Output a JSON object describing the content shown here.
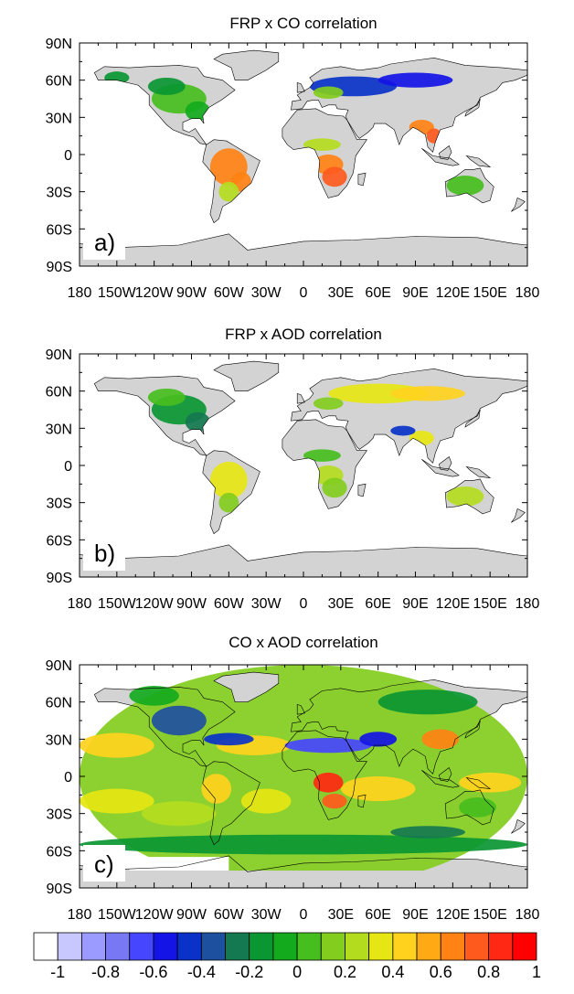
{
  "panels": [
    {
      "title": "FRP x CO correlation",
      "label": "a)"
    },
    {
      "title": "FRP x AOD correlation",
      "label": "b)"
    },
    {
      "title": "CO x AOD correlation",
      "label": "c)"
    }
  ],
  "lat_ticks": [
    "90N",
    "60N",
    "30N",
    "0",
    "30S",
    "60S",
    "90S"
  ],
  "lon_ticks": [
    "180",
    "150W",
    "120W",
    "90W",
    "60W",
    "30W",
    "0",
    "30E",
    "60E",
    "90E",
    "120E",
    "150E",
    "180"
  ],
  "colorbar": {
    "labels": [
      "-1",
      "-0.8",
      "-0.6",
      "-0.4",
      "-0.2",
      "0",
      "0.2",
      "0.4",
      "0.6",
      "0.8",
      "1"
    ],
    "colors": [
      "#ffffff",
      "#c8c8ff",
      "#9b9bff",
      "#7878f5",
      "#4646ff",
      "#1414e6",
      "#0a32c8",
      "#1e50a0",
      "#147850",
      "#0a9632",
      "#14aa1e",
      "#46be1e",
      "#82cd1e",
      "#b4dc1e",
      "#e6e614",
      "#ffd21e",
      "#ffaa14",
      "#ff8214",
      "#ff5a1e",
      "#ff2814",
      "#ff0000"
    ]
  },
  "colors": {
    "land": "#d3d3d3",
    "border": "#000000"
  }
}
